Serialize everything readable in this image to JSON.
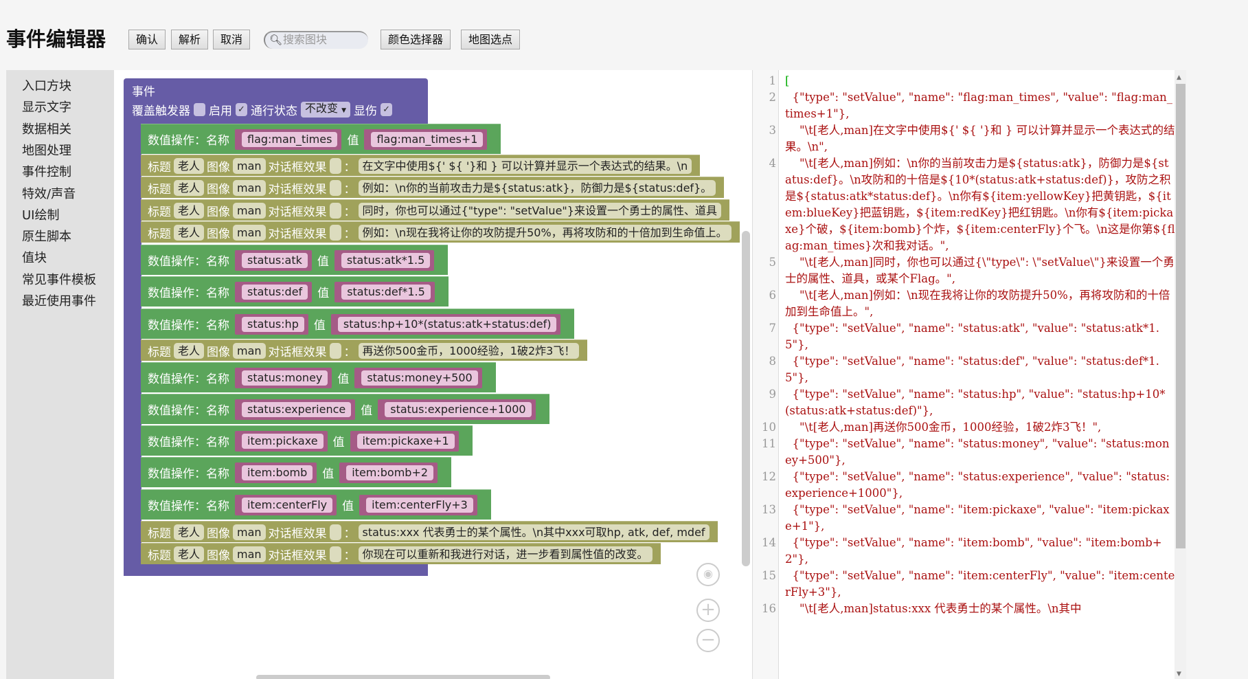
{
  "header": {
    "title": "事件编辑器",
    "buttons": {
      "confirm": "确认",
      "parse": "解析",
      "cancel": "取消",
      "color_picker": "颜色选择器",
      "map_pick": "地图选点"
    },
    "search_placeholder": "搜索图块"
  },
  "sidebar": {
    "items": [
      "入口方块",
      "显示文字",
      "数据相关",
      "地图处理",
      "事件控制",
      "特效/声音",
      "UI绘制",
      "原生脚本",
      "值块",
      "常见事件模板",
      "最近使用事件"
    ]
  },
  "event_block": {
    "title": "事件",
    "override_label": "覆盖触发器",
    "override_checked": false,
    "enable_label": "启用",
    "enable_checked": true,
    "pass_label": "通行状态",
    "pass_value": "不改变",
    "hurt_label": "显伤",
    "hurt_checked": true
  },
  "labels": {
    "set": "数值操作：名称",
    "value": "值",
    "title": "标题",
    "image": "图像",
    "effect": "对话框效果",
    "colon": "："
  },
  "colors": {
    "event": "#665ca6",
    "setValue": "#5ba55b",
    "text": "#a0a25b",
    "code_string": "#aa1111"
  },
  "blocks": [
    {
      "kind": "set",
      "name": "flag:man_times",
      "value": "flag:man_times+1"
    },
    {
      "kind": "text",
      "title": "老人",
      "image": "man",
      "text": "在文字中使用${' ${ '}和 } 可以计算并显示一个表达式的结果。\\n"
    },
    {
      "kind": "text",
      "title": "老人",
      "image": "man",
      "text": "例如：\\n你的当前攻击力是${status:atk}，防御力是${status:def}。"
    },
    {
      "kind": "text",
      "title": "老人",
      "image": "man",
      "text": "同时，你也可以通过{\"type\": \"setValue\"}来设置一个勇士的属性、道具"
    },
    {
      "kind": "text",
      "title": "老人",
      "image": "man",
      "text": "例如：\\n现在我将让你的攻防提升50%，再将攻防和的十倍加到生命值上。"
    },
    {
      "kind": "set",
      "name": "status:atk",
      "value": "status:atk*1.5"
    },
    {
      "kind": "set",
      "name": "status:def",
      "value": "status:def*1.5"
    },
    {
      "kind": "set",
      "name": "status:hp",
      "value": "status:hp+10*(status:atk+status:def)"
    },
    {
      "kind": "text",
      "title": "老人",
      "image": "man",
      "text": "再送你500金币，1000经验，1破2炸3飞！"
    },
    {
      "kind": "set",
      "name": "status:money",
      "value": "status:money+500"
    },
    {
      "kind": "set",
      "name": "status:experience",
      "value": "status:experience+1000"
    },
    {
      "kind": "set",
      "name": "item:pickaxe",
      "value": "item:pickaxe+1"
    },
    {
      "kind": "set",
      "name": "item:bomb",
      "value": "item:bomb+2"
    },
    {
      "kind": "set",
      "name": "item:centerFly",
      "value": "item:centerFly+3"
    },
    {
      "kind": "text",
      "title": "老人",
      "image": "man",
      "text": "status:xxx 代表勇士的某个属性。\\n其中xxx可取hp, atk, def, mdef"
    },
    {
      "kind": "text",
      "title": "老人",
      "image": "man",
      "text": "你现在可以重新和我进行对话，进一步看到属性值的改变。"
    }
  ],
  "code_lines": [
    "[",
    "  {\"type\": \"setValue\", \"name\": \"flag:man_times\", \"value\": \"flag:man_times+1\"},",
    "    \"\\t[老人,man]在文字中使用${' ${ '}和 } 可以计算并显示一个表达式的结果。\\n\",",
    "    \"\\t[老人,man]例如：\\n你的当前攻击力是${status:atk}，防御力是${status:def}。\\n攻防和的十倍是${10*(status:atk+status:def)}，攻防之积是${status:atk*status:def}。\\n你有${item:yellowKey}把黄钥匙，${item:blueKey}把蓝钥匙，${item:redKey}把红钥匙。\\n你有${item:pickaxe}个破，${item:bomb}个炸，${item:centerFly}个飞。\\n这是你第${flag:man_times}次和我对话。\",",
    "    \"\\t[老人,man]同时，你也可以通过{\\\"type\\\": \\\"setValue\\\"}来设置一个勇士的属性、道具，或某个Flag。\",",
    "    \"\\t[老人,man]例如：\\n现在我将让你的攻防提升50%，再将攻防和的十倍加到生命值上。\",",
    "  {\"type\": \"setValue\", \"name\": \"status:atk\", \"value\": \"status:atk*1.5\"},",
    "  {\"type\": \"setValue\", \"name\": \"status:def\", \"value\": \"status:def*1.5\"},",
    "  {\"type\": \"setValue\", \"name\": \"status:hp\", \"value\": \"status:hp+10*(status:atk+status:def)\"},",
    "    \"\\t[老人,man]再送你500金币，1000经验，1破2炸3飞！\",",
    "  {\"type\": \"setValue\", \"name\": \"status:money\", \"value\": \"status:money+500\"},",
    "  {\"type\": \"setValue\", \"name\": \"status:experience\", \"value\": \"status:experience+1000\"},",
    "  {\"type\": \"setValue\", \"name\": \"item:pickaxe\", \"value\": \"item:pickaxe+1\"},",
    "  {\"type\": \"setValue\", \"name\": \"item:bomb\", \"value\": \"item:bomb+2\"},",
    "  {\"type\": \"setValue\", \"name\": \"item:centerFly\", \"value\": \"item:centerFly+3\"},",
    "    \"\\t[老人,man]status:xxx 代表勇士的某个属性。\\n其中"
  ]
}
